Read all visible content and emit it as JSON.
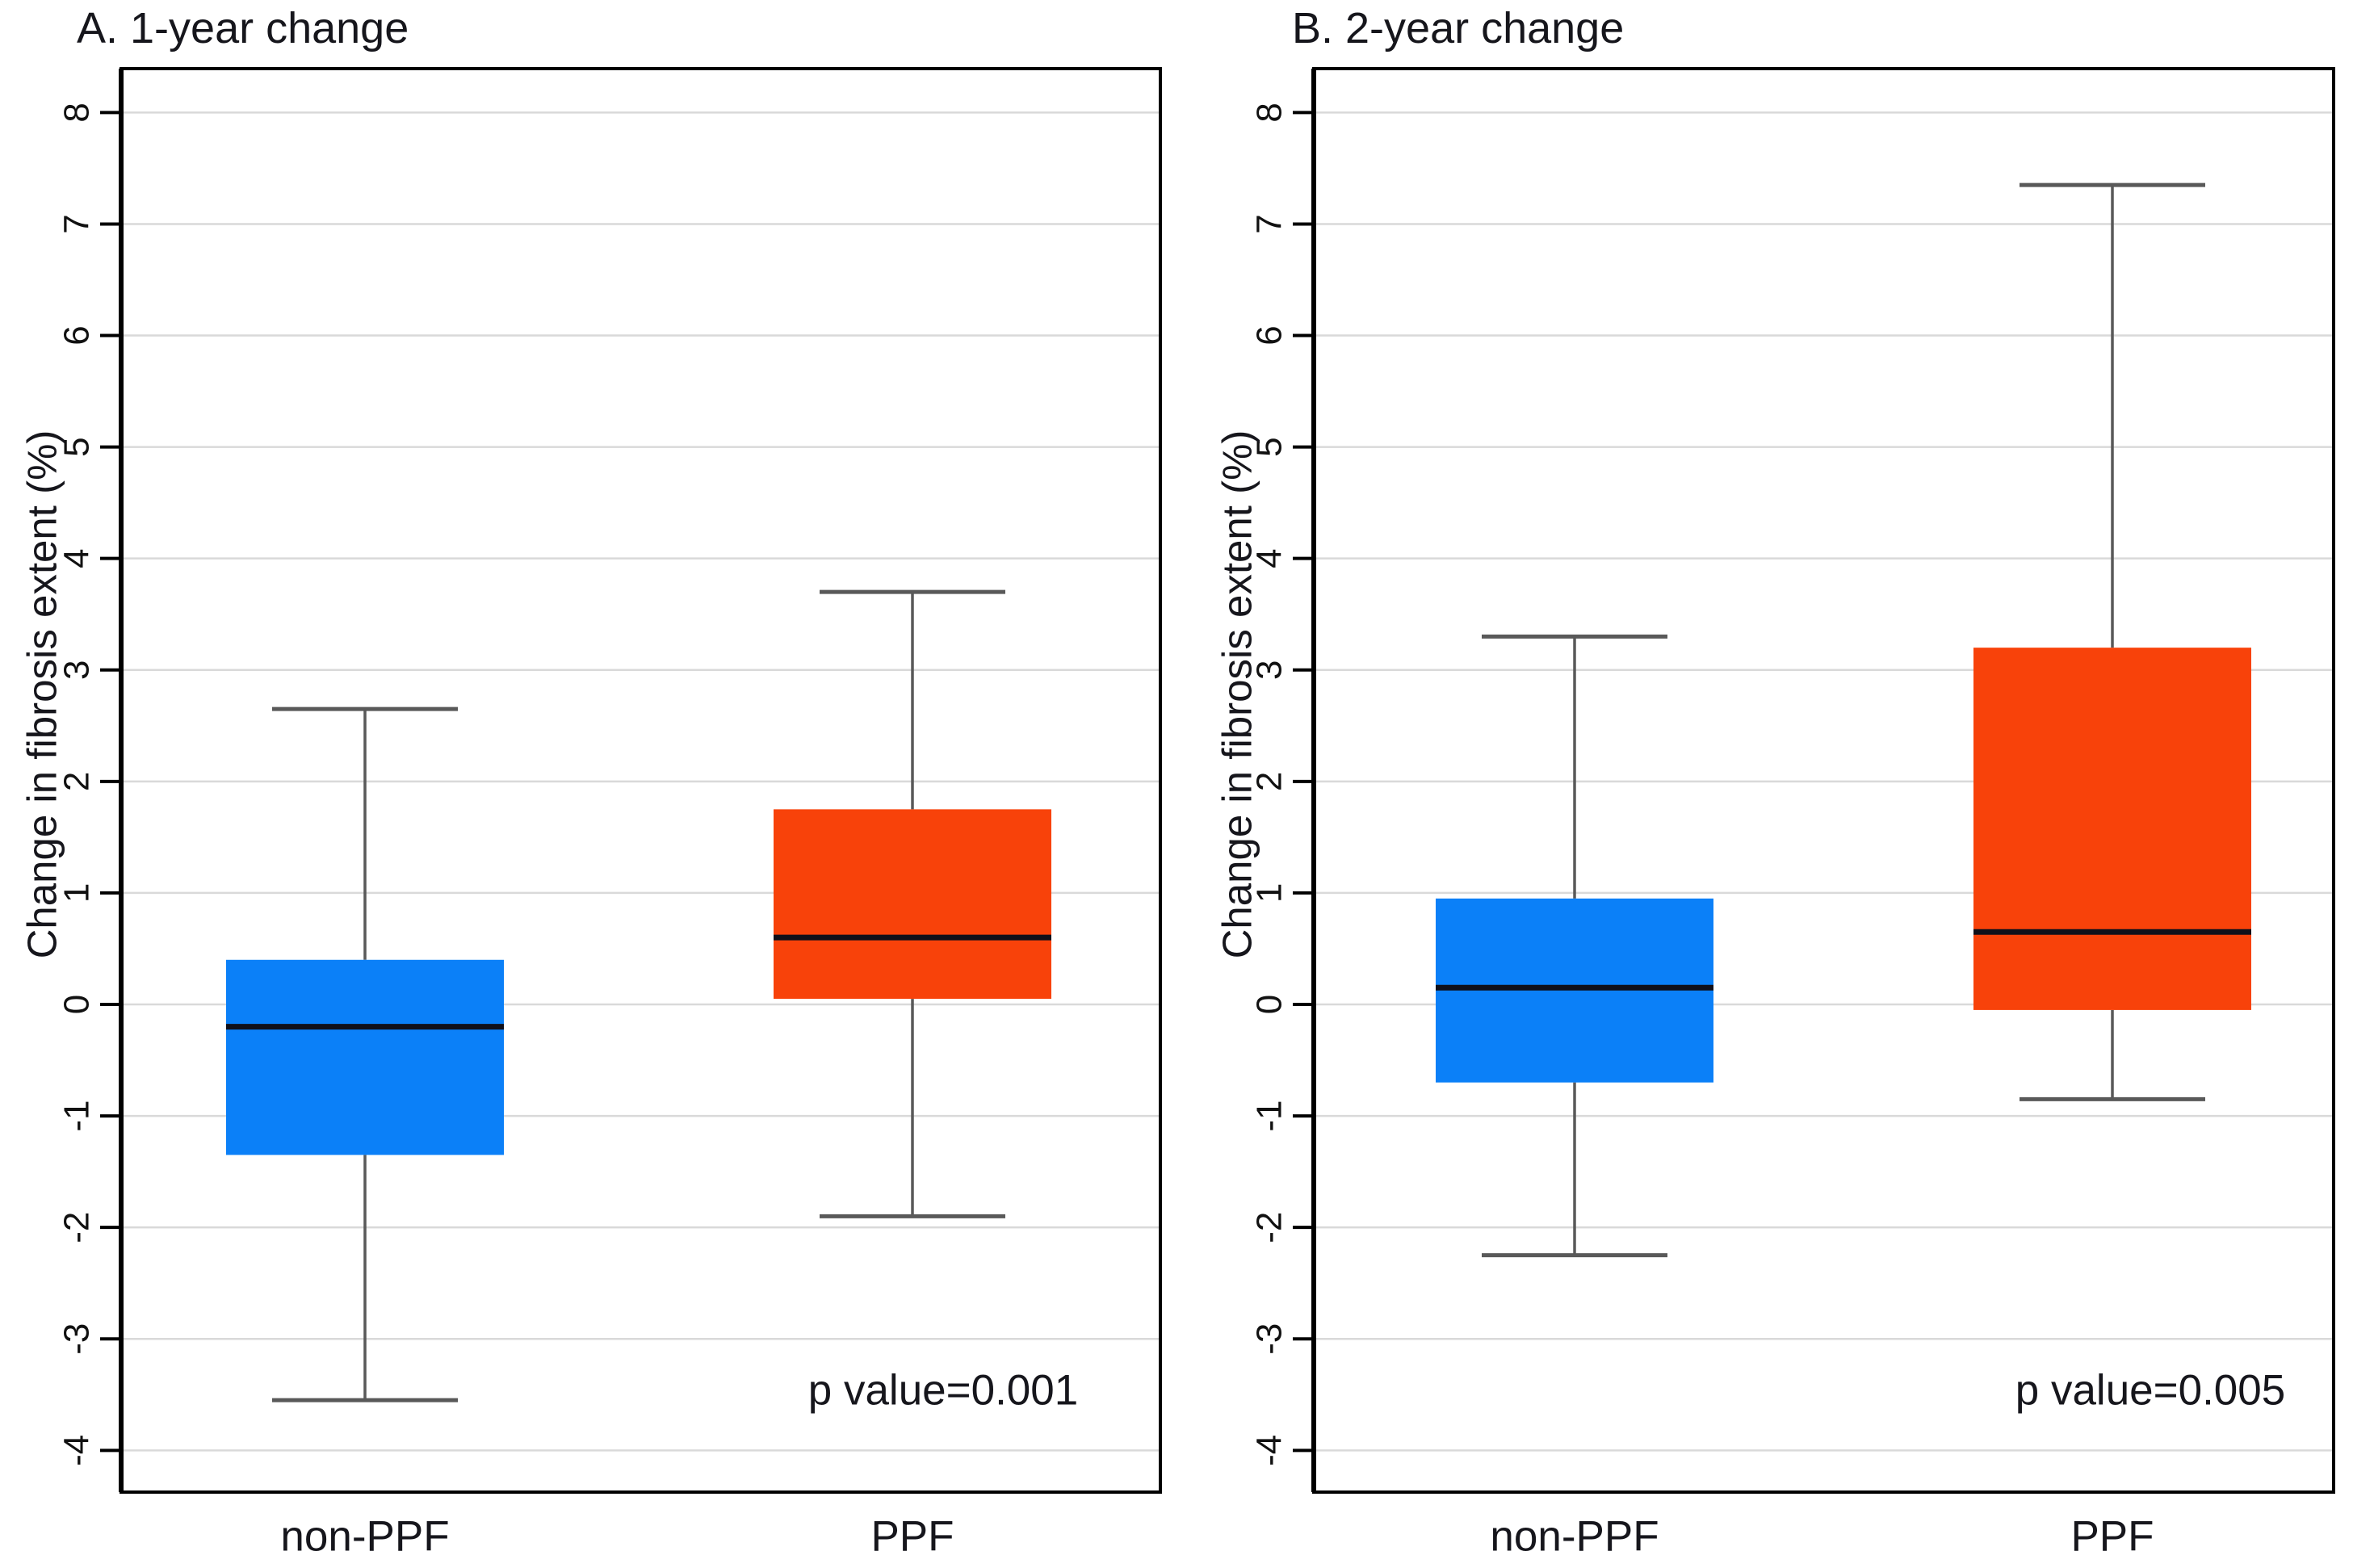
{
  "figure": {
    "background": "#ffffff"
  },
  "styles": {
    "gridline_color": "#d9d9d9",
    "whisker_color": "#595959",
    "median_color": "#10101a",
    "frame_color": "#000000",
    "text_color": "#16161c",
    "blue": "#0b80f8",
    "orange": "#f8420a"
  },
  "chart_data": [
    {
      "type": "box",
      "panel": "A",
      "title": "A. 1-year change",
      "ylabel": "Change in fibrosis extent (%)",
      "ylim": [
        -4,
        8
      ],
      "ytick_step": 1,
      "grid": "horizontal",
      "categories": [
        "non-PPF",
        "PPF"
      ],
      "series": [
        {
          "name": "non-PPF",
          "color": "#0b80f8",
          "whisker_low": -3.55,
          "q1": -1.35,
          "median": -0.2,
          "q3": 0.4,
          "whisker_high": 2.65
        },
        {
          "name": "PPF",
          "color": "#f8420a",
          "whisker_low": -1.9,
          "q1": 0.05,
          "median": 0.6,
          "q3": 1.75,
          "whisker_high": 3.7
        }
      ],
      "annotation": "p value=0.001"
    },
    {
      "type": "box",
      "panel": "B",
      "title": "B. 2-year change",
      "ylabel": "Change in fibrosis extent (%)",
      "ylim": [
        -4,
        8
      ],
      "ytick_step": 1,
      "grid": "horizontal",
      "categories": [
        "non-PPF",
        "PPF"
      ],
      "series": [
        {
          "name": "non-PPF",
          "color": "#0b80f8",
          "whisker_low": -2.25,
          "q1": -0.7,
          "median": 0.15,
          "q3": 0.95,
          "whisker_high": 3.3
        },
        {
          "name": "PPF",
          "color": "#f8420a",
          "whisker_low": -0.85,
          "q1": -0.05,
          "median": 0.65,
          "q3": 3.2,
          "whisker_high": 7.35
        }
      ],
      "annotation": "p value=0.005"
    }
  ]
}
